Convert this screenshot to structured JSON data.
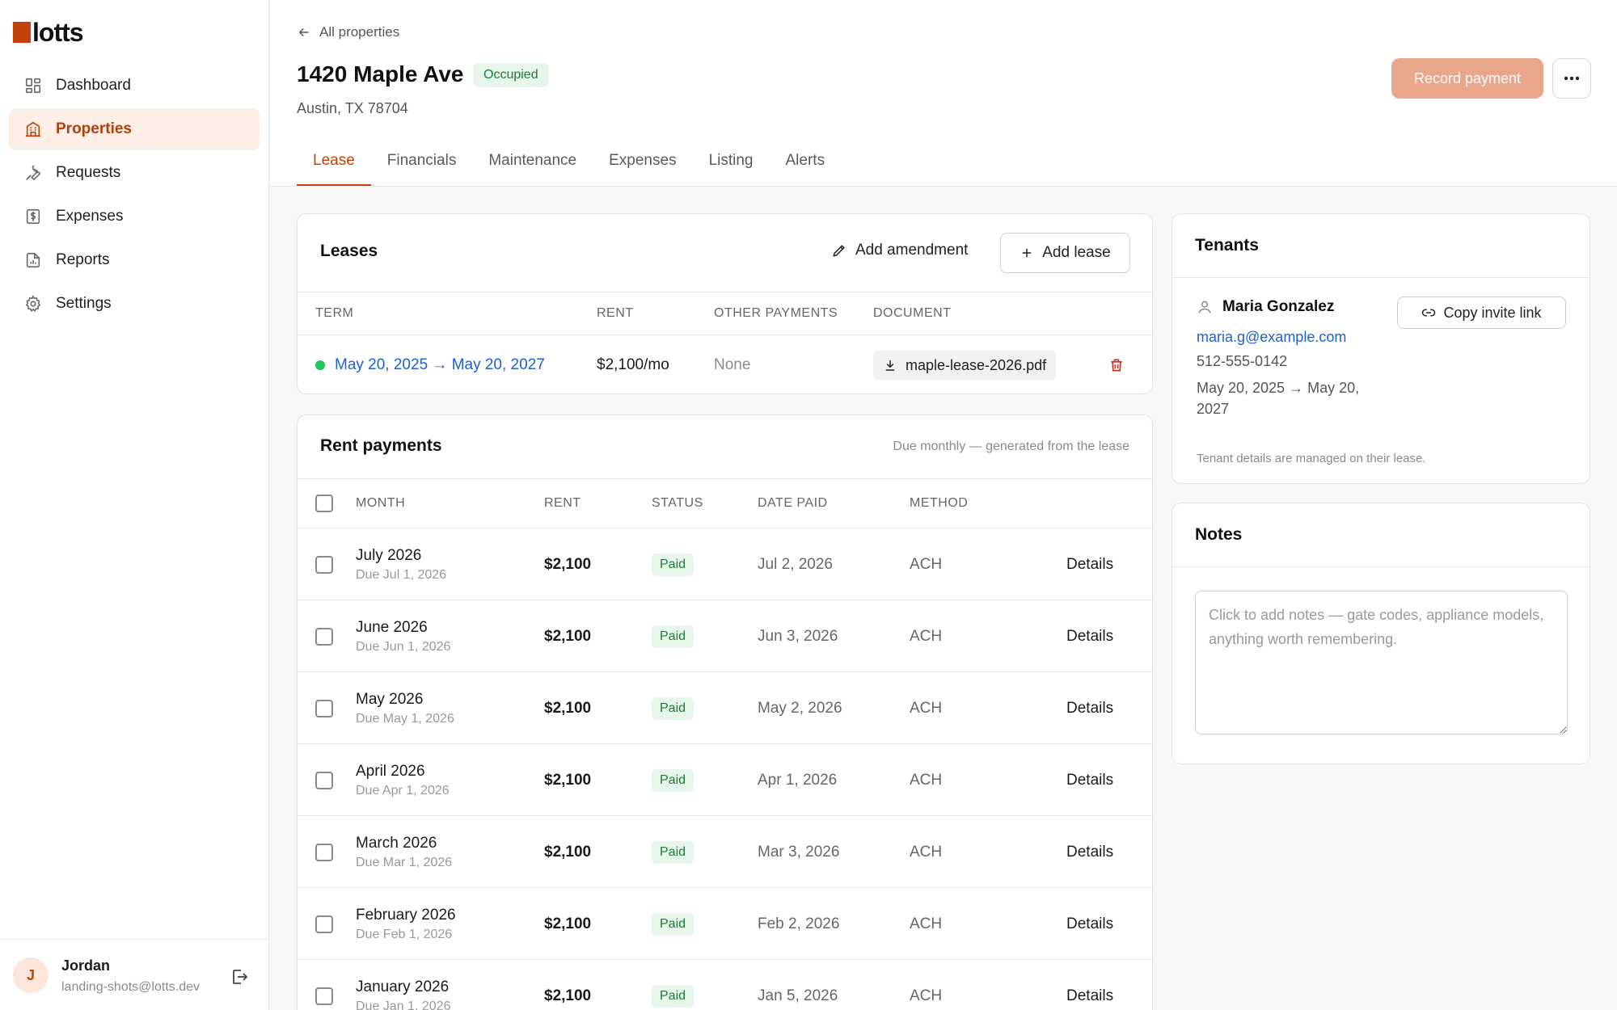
{
  "app": {
    "logo_text": "lotts",
    "brand_color": "#c2410c"
  },
  "sidebar": {
    "items": [
      {
        "label": "Dashboard",
        "icon": "dashboard-icon",
        "active": false
      },
      {
        "label": "Properties",
        "icon": "building-icon",
        "active": true
      },
      {
        "label": "Requests",
        "icon": "wrench-icon",
        "active": false
      },
      {
        "label": "Expenses",
        "icon": "dollar-receipt-icon",
        "active": false
      },
      {
        "label": "Reports",
        "icon": "report-icon",
        "active": false
      },
      {
        "label": "Settings",
        "icon": "gear-icon",
        "active": false
      }
    ],
    "user": {
      "initial": "J",
      "name": "Jordan",
      "email": "landing-shots@lotts.dev"
    }
  },
  "header": {
    "back_label": "All properties",
    "title": "1420 Maple Ave",
    "status_badge": "Occupied",
    "address": "Austin, TX 78704",
    "record_payment_label": "Record payment",
    "more_label": "···",
    "tabs": [
      {
        "label": "Lease",
        "active": true
      },
      {
        "label": "Financials",
        "active": false
      },
      {
        "label": "Maintenance",
        "active": false
      },
      {
        "label": "Expenses",
        "active": false
      },
      {
        "label": "Listing",
        "active": false
      },
      {
        "label": "Alerts",
        "active": false
      }
    ]
  },
  "leases": {
    "title": "Leases",
    "add_amendment_label": "Add amendment",
    "add_lease_label": "Add lease",
    "columns": {
      "term": "TERM",
      "rent": "RENT",
      "other": "OTHER PAYMENTS",
      "document": "DOCUMENT"
    },
    "rows": [
      {
        "term": "May 20, 2025 → May 20, 2027",
        "rent": "$2,100/mo",
        "other": "None",
        "document": "maple-lease-2026.pdf",
        "status_color": "#22c55e"
      }
    ]
  },
  "rent_payments": {
    "title": "Rent payments",
    "subtitle": "Due monthly — generated from the lease",
    "columns": {
      "month": "MONTH",
      "rent": "RENT",
      "status": "STATUS",
      "date_paid": "DATE PAID",
      "method": "METHOD"
    },
    "rows": [
      {
        "month": "July 2026",
        "due": "Due Jul 1, 2026",
        "rent": "$2,100",
        "status": "Paid",
        "date_paid": "Jul 2, 2026",
        "method": "ACH",
        "action": "Details"
      },
      {
        "month": "June 2026",
        "due": "Due Jun 1, 2026",
        "rent": "$2,100",
        "status": "Paid",
        "date_paid": "Jun 3, 2026",
        "method": "ACH",
        "action": "Details"
      },
      {
        "month": "May 2026",
        "due": "Due May 1, 2026",
        "rent": "$2,100",
        "status": "Paid",
        "date_paid": "May 2, 2026",
        "method": "ACH",
        "action": "Details"
      },
      {
        "month": "April 2026",
        "due": "Due Apr 1, 2026",
        "rent": "$2,100",
        "status": "Paid",
        "date_paid": "Apr 1, 2026",
        "method": "ACH",
        "action": "Details"
      },
      {
        "month": "March 2026",
        "due": "Due Mar 1, 2026",
        "rent": "$2,100",
        "status": "Paid",
        "date_paid": "Mar 3, 2026",
        "method": "ACH",
        "action": "Details"
      },
      {
        "month": "February 2026",
        "due": "Due Feb 1, 2026",
        "rent": "$2,100",
        "status": "Paid",
        "date_paid": "Feb 2, 2026",
        "method": "ACH",
        "action": "Details"
      },
      {
        "month": "January 2026",
        "due": "Due Jan 1, 2026",
        "rent": "$2,100",
        "status": "Paid",
        "date_paid": "Jan 5, 2026",
        "method": "ACH",
        "action": "Details"
      }
    ]
  },
  "tenants": {
    "title": "Tenants",
    "name": "Maria Gonzalez",
    "copy_invite_label": "Copy invite link",
    "email": "maria.g@example.com",
    "phone": "512-555-0142",
    "term": "May 20, 2025 → May 20, 2027",
    "note": "Tenant details are managed on their lease."
  },
  "notes": {
    "title": "Notes",
    "placeholder": "Click to add notes — gate codes, appliance models, anything worth remembering.",
    "value": ""
  }
}
